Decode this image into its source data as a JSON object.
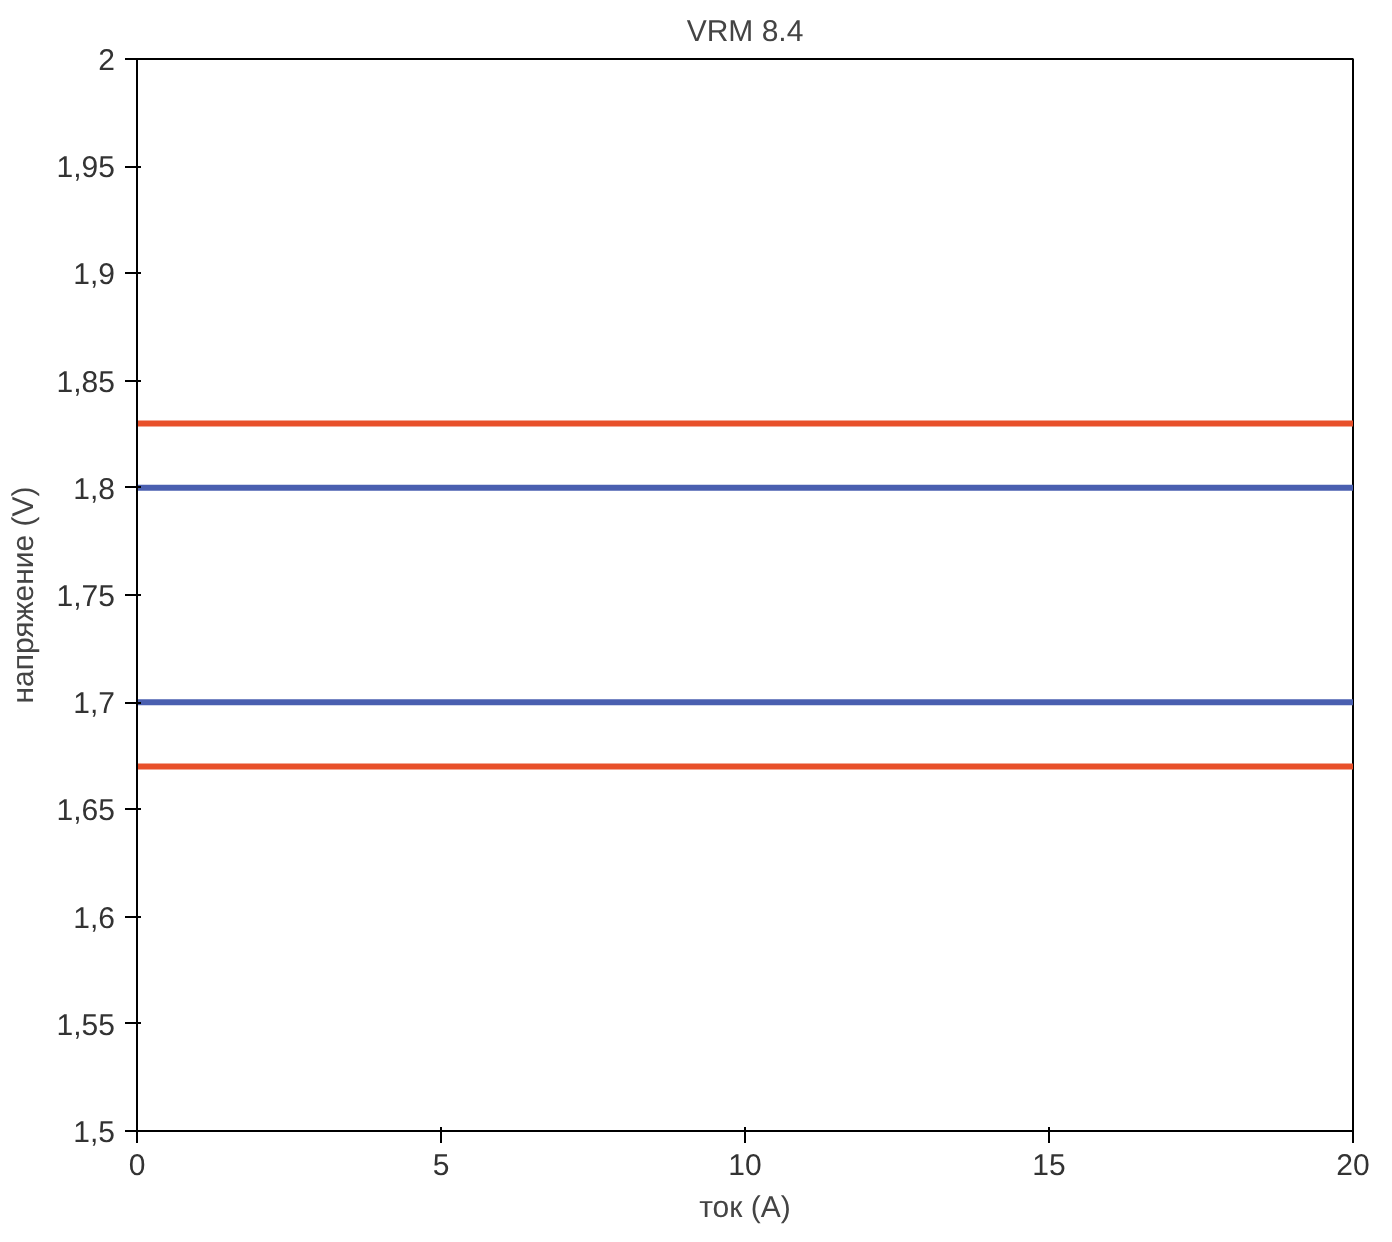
{
  "chart_data": {
    "type": "line",
    "title": "VRM 8.4",
    "xlabel": "ток (A)",
    "ylabel": "напряжение (V)",
    "x": [
      0,
      20
    ],
    "series": [
      {
        "color": "#e8502a",
        "values": [
          1.83,
          1.83
        ]
      },
      {
        "color": "#4a5fb0",
        "values": [
          1.8,
          1.8
        ]
      },
      {
        "color": "#4a5fb0",
        "values": [
          1.7,
          1.7
        ]
      },
      {
        "color": "#e8502a",
        "values": [
          1.67,
          1.67
        ]
      }
    ],
    "xlim": [
      0,
      20
    ],
    "xticks": [
      0,
      5,
      10,
      15,
      20
    ],
    "ylim": [
      1.5,
      2
    ],
    "yticks": [
      {
        "value": 1.5,
        "label": "1,5"
      },
      {
        "value": 1.55,
        "label": "1,55"
      },
      {
        "value": 1.6,
        "label": "1,6"
      },
      {
        "value": 1.65,
        "label": "1,65"
      },
      {
        "value": 1.7,
        "label": "1,7"
      },
      {
        "value": 1.75,
        "label": "1,75"
      },
      {
        "value": 1.8,
        "label": "1,8"
      },
      {
        "value": 1.85,
        "label": "1,85"
      },
      {
        "value": 1.9,
        "label": "1,9"
      },
      {
        "value": 1.95,
        "label": "1,95"
      },
      {
        "value": 2,
        "label": "2"
      }
    ],
    "grid": false,
    "line_style": "solid"
  }
}
